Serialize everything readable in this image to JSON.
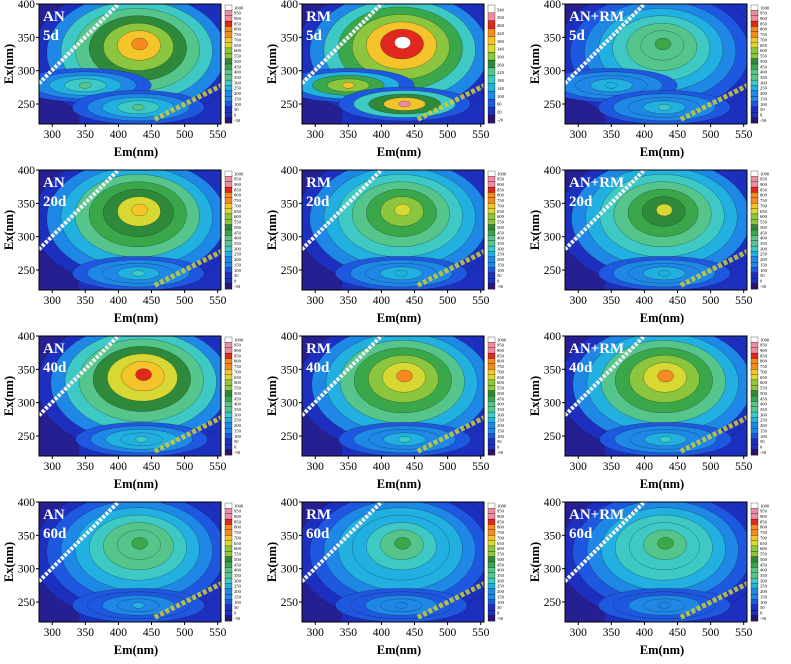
{
  "figure": {
    "x_axis_label": "Em(nm)",
    "y_axis_label": "Ex(nm)",
    "x_ticks": [
      300,
      350,
      400,
      450,
      500,
      550
    ],
    "y_ticks": [
      250,
      300,
      350,
      400
    ]
  },
  "chart_data": [
    {
      "type": "heatmap",
      "treatment": "AN",
      "time": "5d",
      "xlabel": "Em(nm)",
      "ylabel": "Ex(nm)",
      "xlim": [
        280,
        555
      ],
      "ylim": [
        220,
        400
      ],
      "peaks": [
        {
          "em": 432,
          "ex": 340,
          "intensity": 800
        },
        {
          "em": 350,
          "ex": 278,
          "intensity": 420
        },
        {
          "em": 430,
          "ex": 245,
          "intensity": 380
        }
      ],
      "colorbar_ticks": [
        "1000",
        "950",
        "900",
        "850",
        "800",
        "750",
        "700",
        "650",
        "600",
        "550",
        "500",
        "450",
        "400",
        "350",
        "300",
        "250",
        "200",
        "150",
        "100",
        "50",
        "0",
        "-50"
      ]
    },
    {
      "type": "heatmap",
      "treatment": "RM",
      "time": "5d",
      "xlabel": "Em(nm)",
      "ylabel": "Ex(nm)",
      "xlim": [
        280,
        555
      ],
      "ylim": [
        220,
        400
      ],
      "peaks": [
        {
          "em": 432,
          "ex": 342,
          "intensity": 520
        },
        {
          "em": 350,
          "ex": 278,
          "intensity": 400
        },
        {
          "em": 435,
          "ex": 250,
          "intensity": 500
        }
      ],
      "colorbar_ticks": [
        "540",
        "500",
        "460",
        "420",
        "380",
        "340",
        "300",
        "260",
        "220",
        "180",
        "140",
        "100",
        "60",
        "20",
        "-20"
      ]
    },
    {
      "type": "heatmap",
      "treatment": "AN+RM",
      "time": "5d",
      "xlabel": "Em(nm)",
      "ylabel": "Ex(nm)",
      "xlim": [
        280,
        555
      ],
      "ylim": [
        220,
        400
      ],
      "peaks": [
        {
          "em": 428,
          "ex": 340,
          "intensity": 480
        },
        {
          "em": 350,
          "ex": 278,
          "intensity": 300
        },
        {
          "em": 430,
          "ex": 245,
          "intensity": 320
        }
      ],
      "colorbar_ticks": [
        "1000",
        "950",
        "900",
        "850",
        "800",
        "750",
        "700",
        "650",
        "600",
        "550",
        "500",
        "450",
        "400",
        "350",
        "300",
        "250",
        "200",
        "150",
        "100",
        "50",
        "0",
        "-50"
      ]
    },
    {
      "type": "heatmap",
      "treatment": "AN",
      "time": "20d",
      "xlabel": "Em(nm)",
      "ylabel": "Ex(nm)",
      "xlim": [
        280,
        555
      ],
      "ylim": [
        220,
        400
      ],
      "peaks": [
        {
          "em": 432,
          "ex": 340,
          "intensity": 720
        },
        {
          "em": 430,
          "ex": 245,
          "intensity": 330
        }
      ],
      "colorbar_ticks": [
        "1000",
        "950",
        "900",
        "850",
        "800",
        "750",
        "700",
        "650",
        "600",
        "550",
        "500",
        "450",
        "400",
        "350",
        "300",
        "250",
        "200",
        "150",
        "100",
        "50",
        "0",
        "-50"
      ]
    },
    {
      "type": "heatmap",
      "treatment": "RM",
      "time": "20d",
      "xlabel": "Em(nm)",
      "ylabel": "Ex(nm)",
      "xlim": [
        280,
        555
      ],
      "ylim": [
        220,
        400
      ],
      "peaks": [
        {
          "em": 432,
          "ex": 340,
          "intensity": 650
        },
        {
          "em": 430,
          "ex": 245,
          "intensity": 300
        }
      ],
      "colorbar_ticks": [
        "1000",
        "950",
        "900",
        "850",
        "800",
        "750",
        "700",
        "650",
        "600",
        "550",
        "500",
        "450",
        "400",
        "350",
        "300",
        "250",
        "200",
        "150",
        "100",
        "50",
        "0",
        "-50"
      ]
    },
    {
      "type": "heatmap",
      "treatment": "AN+RM",
      "time": "20d",
      "xlabel": "Em(nm)",
      "ylabel": "Ex(nm)",
      "xlim": [
        280,
        555
      ],
      "ylim": [
        220,
        400
      ],
      "peaks": [
        {
          "em": 430,
          "ex": 340,
          "intensity": 630
        },
        {
          "em": 430,
          "ex": 245,
          "intensity": 300
        }
      ],
      "colorbar_ticks": [
        "1000",
        "950",
        "900",
        "850",
        "800",
        "750",
        "700",
        "650",
        "600",
        "550",
        "500",
        "450",
        "400",
        "350",
        "300",
        "250",
        "200",
        "150",
        "100",
        "50",
        "0",
        "-50"
      ]
    },
    {
      "type": "heatmap",
      "treatment": "AN",
      "time": "40d",
      "xlabel": "Em(nm)",
      "ylabel": "Ex(nm)",
      "xlim": [
        280,
        555
      ],
      "ylim": [
        220,
        400
      ],
      "peaks": [
        {
          "em": 438,
          "ex": 342,
          "intensity": 850
        },
        {
          "em": 435,
          "ex": 245,
          "intensity": 360
        }
      ],
      "colorbar_ticks": [
        "1000",
        "950",
        "900",
        "850",
        "800",
        "750",
        "700",
        "650",
        "600",
        "550",
        "500",
        "450",
        "400",
        "350",
        "300",
        "250",
        "200",
        "150",
        "100",
        "50",
        "0",
        "-50"
      ]
    },
    {
      "type": "heatmap",
      "treatment": "RM",
      "time": "40d",
      "xlabel": "Em(nm)",
      "ylabel": "Ex(nm)",
      "xlim": [
        280,
        555
      ],
      "ylim": [
        220,
        400
      ],
      "peaks": [
        {
          "em": 435,
          "ex": 340,
          "intensity": 760
        },
        {
          "em": 435,
          "ex": 245,
          "intensity": 330
        }
      ],
      "colorbar_ticks": [
        "1000",
        "950",
        "900",
        "850",
        "800",
        "750",
        "700",
        "650",
        "600",
        "550",
        "500",
        "450",
        "400",
        "350",
        "300",
        "250",
        "200",
        "150",
        "100",
        "50",
        "0",
        "-50"
      ]
    },
    {
      "type": "heatmap",
      "treatment": "AN+RM",
      "time": "40d",
      "xlabel": "Em(nm)",
      "ylabel": "Ex(nm)",
      "xlim": [
        280,
        555
      ],
      "ylim": [
        220,
        400
      ],
      "peaks": [
        {
          "em": 432,
          "ex": 340,
          "intensity": 780
        },
        {
          "em": 432,
          "ex": 245,
          "intensity": 340
        }
      ],
      "colorbar_ticks": [
        "1000",
        "950",
        "900",
        "850",
        "800",
        "750",
        "700",
        "650",
        "600",
        "550",
        "500",
        "450",
        "400",
        "350",
        "300",
        "250",
        "200",
        "150",
        "100",
        "50",
        "0",
        "-50"
      ]
    },
    {
      "type": "heatmap",
      "treatment": "AN",
      "time": "60d",
      "xlabel": "Em(nm)",
      "ylabel": "Ex(nm)",
      "xlim": [
        280,
        555
      ],
      "ylim": [
        220,
        400
      ],
      "peaks": [
        {
          "em": 432,
          "ex": 338,
          "intensity": 480
        },
        {
          "em": 430,
          "ex": 245,
          "intensity": 250
        }
      ],
      "colorbar_ticks": [
        "1000",
        "950",
        "900",
        "850",
        "800",
        "750",
        "700",
        "650",
        "600",
        "550",
        "500",
        "450",
        "400",
        "350",
        "300",
        "250",
        "200",
        "150",
        "100",
        "50",
        "0",
        "-50"
      ]
    },
    {
      "type": "heatmap",
      "treatment": "RM",
      "time": "60d",
      "xlabel": "Em(nm)",
      "ylabel": "Ex(nm)",
      "xlim": [
        280,
        555
      ],
      "ylim": [
        220,
        400
      ],
      "peaks": [
        {
          "em": 432,
          "ex": 338,
          "intensity": 440
        },
        {
          "em": 430,
          "ex": 245,
          "intensity": 230
        }
      ],
      "colorbar_ticks": [
        "1000",
        "950",
        "900",
        "850",
        "800",
        "750",
        "700",
        "650",
        "600",
        "550",
        "500",
        "450",
        "400",
        "350",
        "300",
        "250",
        "200",
        "150",
        "100",
        "50",
        "0",
        "-50"
      ]
    },
    {
      "type": "heatmap",
      "treatment": "AN+RM",
      "time": "60d",
      "xlabel": "Em(nm)",
      "ylabel": "Ex(nm)",
      "xlim": [
        280,
        555
      ],
      "ylim": [
        220,
        400
      ],
      "peaks": [
        {
          "em": 432,
          "ex": 338,
          "intensity": 470
        },
        {
          "em": 430,
          "ex": 245,
          "intensity": 240
        }
      ],
      "colorbar_ticks": [
        "1000",
        "950",
        "900",
        "850",
        "800",
        "750",
        "700",
        "650",
        "600",
        "550",
        "500",
        "450",
        "400",
        "350",
        "300",
        "250",
        "200",
        "150",
        "100",
        "50",
        "0",
        "-50"
      ]
    }
  ],
  "palette": [
    "#2c136e",
    "#1d2fbf",
    "#1f58e0",
    "#1f88e6",
    "#22b0e0",
    "#3ec9c4",
    "#55c58c",
    "#3aa84a",
    "#2e8a3a",
    "#8cc63e",
    "#d7d833",
    "#f5c42a",
    "#f58a1e",
    "#e0281e",
    "#f08aa0",
    "#ffffff"
  ]
}
